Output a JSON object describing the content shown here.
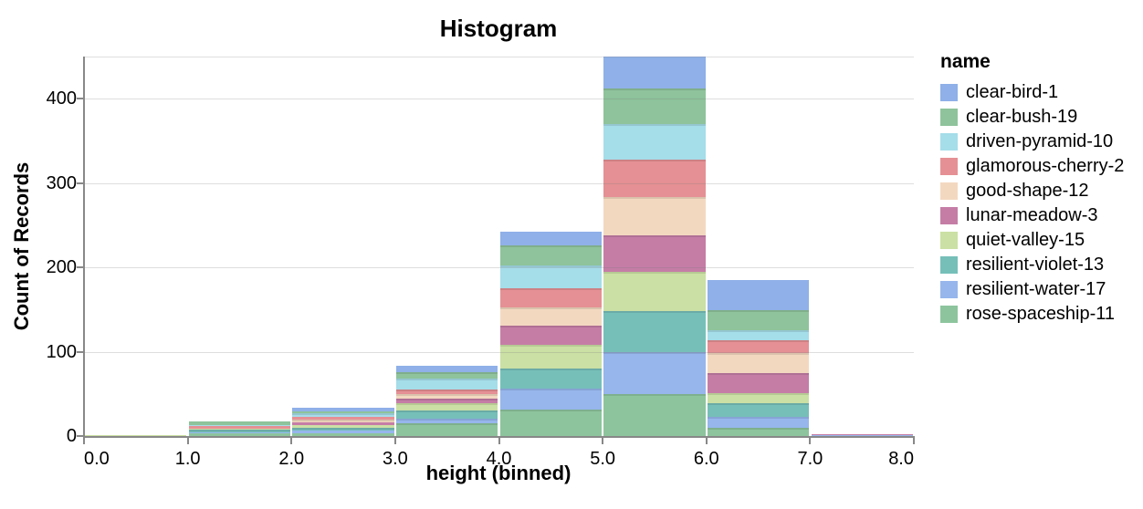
{
  "title": "Histogram",
  "axes": {
    "x": {
      "title": "height (binned)",
      "ticks": [
        {
          "label": "0.0",
          "value": 0
        },
        {
          "label": "1.0",
          "value": 1
        },
        {
          "label": "2.0",
          "value": 2
        },
        {
          "label": "3.0",
          "value": 3
        },
        {
          "label": "4.0",
          "value": 4
        },
        {
          "label": "5.0",
          "value": 5
        },
        {
          "label": "6.0",
          "value": 6
        },
        {
          "label": "7.0",
          "value": 7
        },
        {
          "label": "8.0",
          "value": 8
        }
      ]
    },
    "y": {
      "title": "Count of Records",
      "ticks": [
        {
          "label": "0",
          "value": 0
        },
        {
          "label": "100",
          "value": 100
        },
        {
          "label": "200",
          "value": 200
        },
        {
          "label": "300",
          "value": 300
        },
        {
          "label": "400",
          "value": 400
        }
      ],
      "gridlines": [
        100,
        200,
        300,
        400,
        450
      ]
    }
  },
  "legend": {
    "title": "name",
    "items": [
      {
        "label": "clear-bird-1",
        "color": "#8fb0e8"
      },
      {
        "label": "clear-bush-19",
        "color": "#8ec39b"
      },
      {
        "label": "driven-pyramid-10",
        "color": "#a5dde9"
      },
      {
        "label": "glamorous-cherry-2",
        "color": "#e59094"
      },
      {
        "label": "good-shape-12",
        "color": "#f3d8c0"
      },
      {
        "label": "lunar-meadow-3",
        "color": "#c57da6"
      },
      {
        "label": "quiet-valley-15",
        "color": "#cbe0a4"
      },
      {
        "label": "resilient-violet-13",
        "color": "#76bfb9"
      },
      {
        "label": "resilient-water-17",
        "color": "#96b6ec"
      },
      {
        "label": "rose-spaceship-11",
        "color": "#8dc49d"
      }
    ]
  },
  "chart_data": {
    "type": "bar",
    "stacked": true,
    "title": "Histogram",
    "xlabel": "height (binned)",
    "ylabel": "Count of Records",
    "xlim": [
      0,
      8
    ],
    "ylim": [
      0,
      450
    ],
    "bin_width": 1,
    "bin_starts": [
      0,
      1,
      2,
      3,
      4,
      5,
      6,
      7
    ],
    "grid": true,
    "legend_position": "right",
    "note": "bin 5-6 total reaches the 450 axis top (clipped); stack order bottom-to-top is reverse legend order",
    "series": [
      {
        "name": "clear-bird-1",
        "color": "#8fb0e8",
        "values": [
          0,
          0,
          4,
          7,
          16,
          38,
          36,
          0
        ]
      },
      {
        "name": "clear-bush-19",
        "color": "#8ec39b",
        "values": [
          0,
          4,
          2,
          8,
          24,
          42,
          24,
          0
        ]
      },
      {
        "name": "driven-pyramid-10",
        "color": "#a5dde9",
        "values": [
          0,
          1,
          4,
          13,
          27,
          42,
          11,
          0
        ]
      },
      {
        "name": "glamorous-cherry-2",
        "color": "#e59094",
        "values": [
          0,
          3,
          3,
          5,
          23,
          45,
          16,
          0
        ]
      },
      {
        "name": "good-shape-12",
        "color": "#f3d8c0",
        "values": [
          0,
          0,
          4,
          6,
          21,
          45,
          23,
          0
        ]
      },
      {
        "name": "lunar-meadow-3",
        "color": "#c57da6",
        "values": [
          0,
          0,
          3,
          5,
          23,
          43,
          24,
          1
        ]
      },
      {
        "name": "quiet-valley-15",
        "color": "#cbe0a4",
        "values": [
          1,
          1,
          3,
          9,
          28,
          47,
          12,
          0
        ]
      },
      {
        "name": "resilient-violet-13",
        "color": "#76bfb9",
        "values": [
          0,
          4,
          4,
          9,
          24,
          48,
          16,
          0
        ]
      },
      {
        "name": "resilient-water-17",
        "color": "#96b6ec",
        "values": [
          0,
          1,
          3,
          6,
          25,
          50,
          13,
          1
        ]
      },
      {
        "name": "rose-spaceship-11",
        "color": "#8dc49d",
        "values": [
          0,
          3,
          3,
          15,
          31,
          50,
          10,
          0
        ]
      }
    ],
    "bin_totals": [
      1,
      17,
      33,
      83,
      242,
      450,
      185,
      2
    ]
  }
}
